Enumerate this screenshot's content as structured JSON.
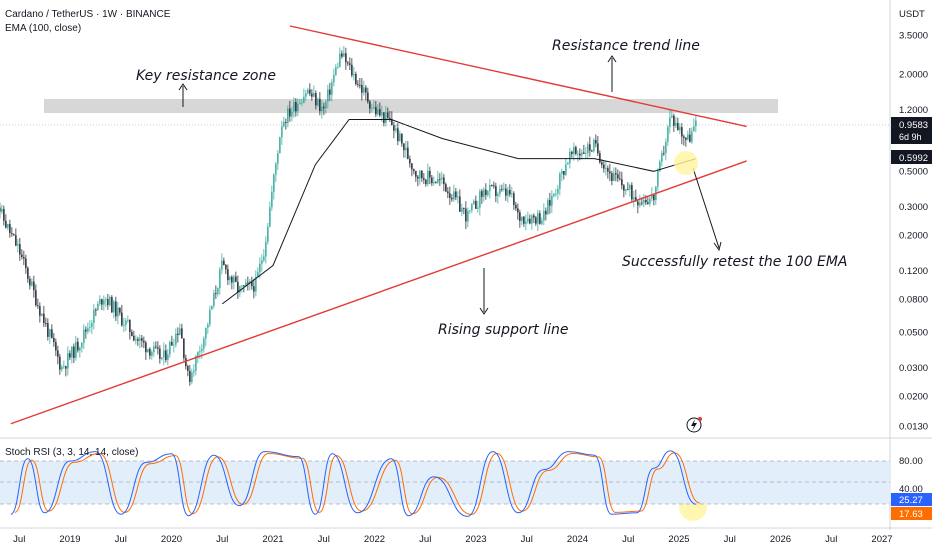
{
  "header": {
    "symbol": "Cardano / TetherUS · 1W · BINANCE",
    "indicator": "EMA (100, close)",
    "currency": "USDT"
  },
  "price_axis": {
    "ticks": [
      "3.5000",
      "2.0000",
      "1.2000",
      "0.5000",
      "0.3000",
      "0.2000",
      "0.1200",
      "0.0800",
      "0.0500",
      "0.0300",
      "0.0200",
      "0.0130"
    ],
    "last_price": "0.9583",
    "countdown": "6d 9h",
    "ema_value": "0.5992"
  },
  "rsi": {
    "label": "Stoch RSI (3, 3, 14, 14, close)",
    "ticks": [
      "80.00",
      "40.00"
    ],
    "k_value": "25.27",
    "d_value": "17.63"
  },
  "time_axis": {
    "labels": [
      "Jul",
      "2019",
      "Jul",
      "2020",
      "Jul",
      "2021",
      "Jul",
      "2022",
      "Jul",
      "2023",
      "Jul",
      "2024",
      "Jul",
      "2025",
      "Jul",
      "2026",
      "Jul",
      "2027"
    ]
  },
  "annotations": {
    "resistance_zone": "Key resistance zone",
    "resistance_line": "Resistance trend line",
    "retest": "Successfully retest the 100 EMA",
    "support": "Rising support line"
  },
  "colors": {
    "up": "#26a69a",
    "down": "#131722",
    "trendline": "#e53935",
    "ema": "#131722",
    "k_line": "#2962ff",
    "d_line": "#ff6d00",
    "rsi_band": "#e3eefb",
    "highlight": "#fff59d"
  },
  "chart_data": [
    {
      "type": "candlestick",
      "title": "Cardano / TetherUS · 1W · BINANCE",
      "scale": "log",
      "ylim": [
        0.012,
        4.0
      ],
      "x_range": [
        "2018-04",
        "2027-06"
      ],
      "close_path": [
        {
          "x": "2018-04",
          "y": 0.38
        },
        {
          "x": "2018-05",
          "y": 0.26
        },
        {
          "x": "2018-07",
          "y": 0.16
        },
        {
          "x": "2018-09",
          "y": 0.08
        },
        {
          "x": "2018-12",
          "y": 0.03
        },
        {
          "x": "2019-02",
          "y": 0.042
        },
        {
          "x": "2019-05",
          "y": 0.085
        },
        {
          "x": "2019-07",
          "y": 0.062
        },
        {
          "x": "2019-09",
          "y": 0.045
        },
        {
          "x": "2019-12",
          "y": 0.034
        },
        {
          "x": "2020-02",
          "y": 0.055
        },
        {
          "x": "2020-03",
          "y": 0.025
        },
        {
          "x": "2020-05",
          "y": 0.05
        },
        {
          "x": "2020-07",
          "y": 0.13
        },
        {
          "x": "2020-09",
          "y": 0.09
        },
        {
          "x": "2020-11",
          "y": 0.1
        },
        {
          "x": "2020-12",
          "y": 0.17
        },
        {
          "x": "2021-02",
          "y": 1.0
        },
        {
          "x": "2021-05",
          "y": 1.6
        },
        {
          "x": "2021-07",
          "y": 1.2
        },
        {
          "x": "2021-09",
          "y": 2.7
        },
        {
          "x": "2021-11",
          "y": 1.8
        },
        {
          "x": "2022-01",
          "y": 1.2
        },
        {
          "x": "2022-03",
          "y": 1.0
        },
        {
          "x": "2022-06",
          "y": 0.48
        },
        {
          "x": "2022-09",
          "y": 0.43
        },
        {
          "x": "2022-12",
          "y": 0.26
        },
        {
          "x": "2023-02",
          "y": 0.38
        },
        {
          "x": "2023-05",
          "y": 0.36
        },
        {
          "x": "2023-06",
          "y": 0.26
        },
        {
          "x": "2023-09",
          "y": 0.26
        },
        {
          "x": "2023-12",
          "y": 0.62
        },
        {
          "x": "2024-03",
          "y": 0.72
        },
        {
          "x": "2024-05",
          "y": 0.47
        },
        {
          "x": "2024-08",
          "y": 0.34
        },
        {
          "x": "2024-10",
          "y": 0.34
        },
        {
          "x": "2024-12",
          "y": 1.1
        },
        {
          "x": "2025-02",
          "y": 0.78
        },
        {
          "x": "2025-03",
          "y": 0.9583
        }
      ],
      "ema_path": [
        {
          "x": "2020-07",
          "y": 0.075
        },
        {
          "x": "2021-01",
          "y": 0.13
        },
        {
          "x": "2021-06",
          "y": 0.55
        },
        {
          "x": "2021-10",
          "y": 1.05
        },
        {
          "x": "2022-03",
          "y": 1.05
        },
        {
          "x": "2022-09",
          "y": 0.8
        },
        {
          "x": "2023-06",
          "y": 0.6
        },
        {
          "x": "2024-03",
          "y": 0.6
        },
        {
          "x": "2024-10",
          "y": 0.5
        },
        {
          "x": "2025-03",
          "y": 0.5992
        }
      ],
      "resistance_zone": [
        1.05,
        1.35
      ],
      "resistance_line": [
        {
          "x": "2021-03",
          "y": 4.0
        },
        {
          "x": "2025-09",
          "y": 0.95
        }
      ],
      "support_line": [
        {
          "x": "2018-06",
          "y": 0.0135
        },
        {
          "x": "2025-09",
          "y": 0.58
        }
      ]
    },
    {
      "type": "line",
      "title": "Stoch RSI (3, 3, 14, 14, close)",
      "ylim": [
        0,
        100
      ],
      "bands": [
        20,
        80
      ],
      "series": [
        {
          "name": "K",
          "last": 25.27
        },
        {
          "name": "D",
          "last": 17.63
        }
      ],
      "swings": [
        {
          "x": "2018-06",
          "y": 8
        },
        {
          "x": "2018-08",
          "y": 85
        },
        {
          "x": "2018-10",
          "y": 10
        },
        {
          "x": "2019-01",
          "y": 82
        },
        {
          "x": "2019-04",
          "y": 95
        },
        {
          "x": "2019-07",
          "y": 8
        },
        {
          "x": "2019-10",
          "y": 80
        },
        {
          "x": "2020-01",
          "y": 92
        },
        {
          "x": "2020-03",
          "y": 6
        },
        {
          "x": "2020-06",
          "y": 90
        },
        {
          "x": "2020-09",
          "y": 20
        },
        {
          "x": "2020-12",
          "y": 95
        },
        {
          "x": "2021-04",
          "y": 88
        },
        {
          "x": "2021-06",
          "y": 8
        },
        {
          "x": "2021-08",
          "y": 92
        },
        {
          "x": "2021-11",
          "y": 10
        },
        {
          "x": "2022-03",
          "y": 85
        },
        {
          "x": "2022-05",
          "y": 6
        },
        {
          "x": "2022-08",
          "y": 60
        },
        {
          "x": "2022-12",
          "y": 5
        },
        {
          "x": "2023-03",
          "y": 95
        },
        {
          "x": "2023-06",
          "y": 10
        },
        {
          "x": "2023-09",
          "y": 70
        },
        {
          "x": "2023-12",
          "y": 95
        },
        {
          "x": "2024-03",
          "y": 90
        },
        {
          "x": "2024-05",
          "y": 8
        },
        {
          "x": "2024-08",
          "y": 10
        },
        {
          "x": "2024-10",
          "y": 72
        },
        {
          "x": "2024-12",
          "y": 96
        },
        {
          "x": "2025-03",
          "y": 22
        }
      ]
    }
  ]
}
